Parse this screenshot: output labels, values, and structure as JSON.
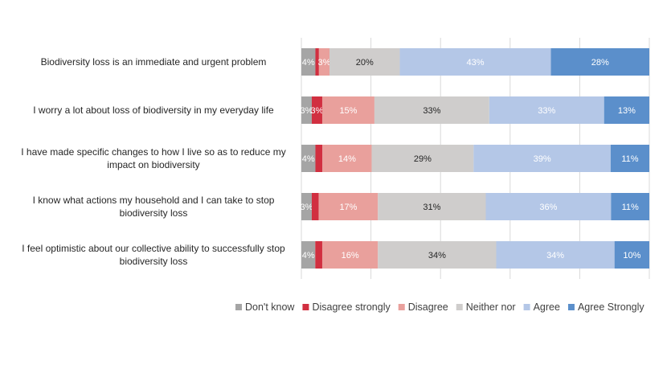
{
  "chart_data": {
    "type": "bar",
    "orientation": "horizontal",
    "stacked": true,
    "stack_mode": "percent",
    "categories": [
      "Biodiversity loss is an immediate and urgent problem",
      "I worry a lot about loss of biodiversity in my everyday life",
      "I have made specific changes to how I live so as to reduce my impact on biodiversity",
      "I know what actions my household and I can take to stop biodiversity loss",
      "I feel optimistic about our collective ability to successfully stop biodiversity loss"
    ],
    "category_lines": [
      [
        "Biodiversity loss is an immediate and urgent problem"
      ],
      [
        "I worry a lot about loss of biodiversity in my everyday life"
      ],
      [
        "I have made specific changes to how I live so as to reduce my",
        "impact on biodiversity"
      ],
      [
        "I know what actions my household and I can take to stop",
        "biodiversity loss"
      ],
      [
        "I feel optimistic about our collective ability to successfully stop",
        "biodiversity loss"
      ]
    ],
    "series": [
      {
        "name": "Don't know",
        "color": "#a5a5a5",
        "values": [
          4,
          3,
          4,
          3,
          4
        ],
        "labels": [
          "4%",
          "3%",
          "4%",
          "3%",
          "4%"
        ]
      },
      {
        "name": "Disagree strongly",
        "color": "#d12f40",
        "values": [
          1,
          3,
          2,
          2,
          2
        ],
        "labels": [
          "",
          "3%",
          "",
          "",
          ""
        ]
      },
      {
        "name": "Disagree",
        "color": "#e9a09c",
        "values": [
          3,
          15,
          14,
          17,
          16
        ],
        "labels": [
          "3%",
          "15%",
          "14%",
          "17%",
          "16%"
        ]
      },
      {
        "name": "Neither nor",
        "color": "#cfcdcc",
        "values": [
          20,
          33,
          29,
          31,
          34
        ],
        "labels": [
          "20%",
          "33%",
          "29%",
          "31%",
          "34%"
        ]
      },
      {
        "name": "Agree",
        "color": "#b4c7e7",
        "values": [
          43,
          33,
          39,
          36,
          34
        ],
        "labels": [
          "43%",
          "33%",
          "39%",
          "36%",
          "34%"
        ]
      },
      {
        "name": "Agree Strongly",
        "color": "#5b8fcb",
        "values": [
          28,
          13,
          11,
          11,
          10
        ],
        "labels": [
          "28%",
          "13%",
          "11%",
          "11%",
          "10%"
        ]
      }
    ],
    "legend_position": "bottom-right",
    "grid": true
  }
}
